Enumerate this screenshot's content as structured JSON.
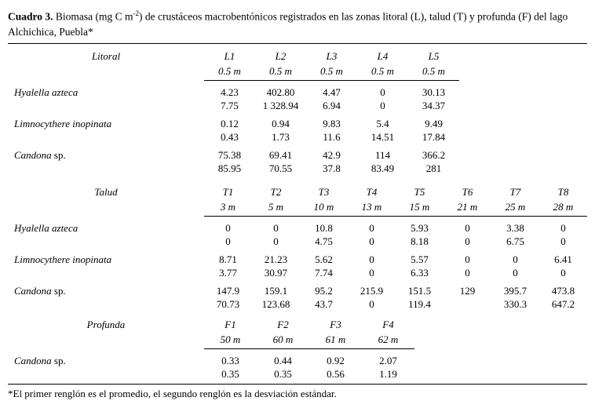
{
  "colors": {
    "text": "#000000",
    "background": "#ffffff",
    "rule": "#000000"
  },
  "title": {
    "bold": "Cuadro 3.",
    "rest_before_sup": " Biomasa (mg C m",
    "sup": "-2",
    "rest_after_sup": ") de crustáceos macrobentónicos registrados en las zonas litoral (L), talud (T) y profunda (F) del lago",
    "line2": "Alchichica, Puebla*"
  },
  "footnote": "*El primer renglón es el promedio, el segundo renglón es la desviación estándar.",
  "sections": [
    {
      "name": "Litoral",
      "stations": [
        "L1",
        "L2",
        "L3",
        "L4",
        "L5"
      ],
      "depths": [
        "0.5 m",
        "0.5 m",
        "0.5 m",
        "0.5 m",
        "0.5 m"
      ],
      "rows": [
        {
          "species": "Hyalella azteca",
          "suffix": "",
          "mean": [
            "4.23",
            "402.80",
            "4.47",
            "0",
            "30.13"
          ],
          "sd": [
            "7.75",
            "1 328.94",
            "6.94",
            "0",
            "34.37"
          ]
        },
        {
          "species": "Limnocythere inopinata",
          "suffix": "",
          "mean": [
            "0.12",
            "0.94",
            "9.83",
            "5.4",
            "9.49"
          ],
          "sd": [
            "0.43",
            "1.73",
            "11.6",
            "14.51",
            "17.84"
          ]
        },
        {
          "species": "Candona",
          "suffix": " sp.",
          "mean": [
            "75.38",
            "69.41",
            "42.9",
            "114",
            "366.2"
          ],
          "sd": [
            "85.95",
            "70.55",
            "37.8",
            "83.49",
            "281"
          ]
        }
      ]
    },
    {
      "name": "Talud",
      "stations": [
        "T1",
        "T2",
        "T3",
        "T4",
        "T5",
        "T6",
        "T7",
        "T8"
      ],
      "depths": [
        "3 m",
        "5 m",
        "10 m",
        "13 m",
        "15 m",
        "21 m",
        "25 m",
        "28 m"
      ],
      "rows": [
        {
          "species": "Hyalella azteca",
          "suffix": "",
          "mean": [
            "0",
            "0",
            "10.8",
            "0",
            "5.93",
            "0",
            "3.38",
            "0"
          ],
          "sd": [
            "0",
            "0",
            "4.75",
            "0",
            "8.18",
            "0",
            "6.75",
            "0"
          ]
        },
        {
          "species": "Limnocythere inopinata",
          "suffix": "",
          "mean": [
            "8.71",
            "21.23",
            "5.62",
            "0",
            "5.57",
            "0",
            "0",
            "6.41"
          ],
          "sd": [
            "3.77",
            "30.97",
            "7.74",
            "0",
            "6.33",
            "0",
            "0",
            "0"
          ]
        },
        {
          "species": "Candona",
          "suffix": " sp.",
          "mean": [
            "147.9",
            "159.1",
            "95.2",
            "215.9",
            "151.5",
            "129",
            "395.7",
            "473.8"
          ],
          "sd": [
            "70.73",
            "123.68",
            "43.7",
            "0",
            "119.4",
            "",
            "330.3",
            "647.2"
          ]
        }
      ]
    },
    {
      "name": "Profunda",
      "stations": [
        "F1",
        "F2",
        "F3",
        "F4"
      ],
      "depths": [
        "50 m",
        "60 m",
        "61 m",
        "62 m"
      ],
      "rows": [
        {
          "species": "Candona",
          "suffix": " sp.",
          "mean": [
            "0.33",
            "0.44",
            "0.92",
            "2.07"
          ],
          "sd": [
            "0.35",
            "0.35",
            "0.56",
            "1.19"
          ]
        }
      ]
    }
  ]
}
